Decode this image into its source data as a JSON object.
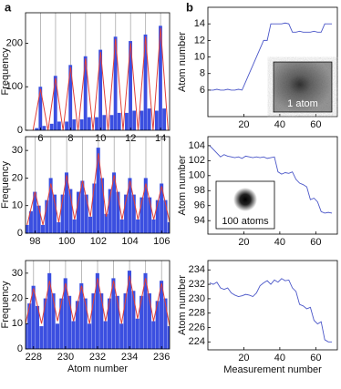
{
  "panel_labels": [
    "a",
    "b"
  ],
  "chart_data": [
    {
      "type": "histogram",
      "ylabel": "Frequency",
      "color": "#3b4fe0",
      "fit_color": "#e0403a",
      "grid_color": "#aaaaaa",
      "xlim": [
        5,
        14.6
      ],
      "ylim": [
        0,
        270
      ],
      "xticks": [
        6,
        8,
        10,
        12,
        14
      ],
      "yticks": [
        0,
        100,
        200
      ],
      "xgrid": [
        6,
        7,
        8,
        9,
        10,
        11,
        12,
        13,
        14
      ],
      "bins": [
        5.375,
        5.625,
        5.875,
        6.125,
        6.375,
        6.625,
        6.875,
        7.125,
        7.375,
        7.625,
        7.875,
        8.125,
        8.375,
        8.625,
        8.875,
        9.125,
        9.375,
        9.625,
        9.875,
        10.125,
        10.375,
        10.625,
        10.875,
        11.125,
        11.375,
        11.625,
        11.875,
        12.125,
        12.375,
        12.625,
        12.875,
        13.125,
        13.375,
        13.625,
        13.875,
        14.125,
        14.375,
        14.625
      ],
      "values": [
        0,
        5,
        100,
        10,
        0,
        15,
        125,
        20,
        0,
        20,
        150,
        25,
        0,
        25,
        170,
        30,
        0,
        30,
        185,
        35,
        0,
        35,
        215,
        40,
        0,
        40,
        205,
        45,
        0,
        45,
        220,
        50,
        0,
        45,
        240,
        50,
        0
      ],
      "fit_x": [
        5.5,
        6,
        6.5,
        7,
        7.5,
        8,
        8.5,
        9,
        9.5,
        10,
        10.5,
        11,
        11.5,
        12,
        12.5,
        13,
        13.5,
        14,
        14.5
      ],
      "fit_values": [
        0,
        95,
        0,
        120,
        0,
        145,
        0,
        165,
        0,
        180,
        0,
        210,
        0,
        200,
        0,
        215,
        0,
        235,
        0
      ]
    },
    {
      "type": "histogram",
      "ylabel": "Frequency",
      "color": "#3b4fe0",
      "fit_color": "#e0403a",
      "grid_color": "#aaaaaa",
      "xlim": [
        97.4,
        106.5
      ],
      "ylim": [
        0,
        35
      ],
      "xticks": [
        98,
        100,
        102,
        104,
        106
      ],
      "yticks": [
        0,
        10,
        20,
        30
      ],
      "xgrid": [
        98,
        99,
        100,
        101,
        102,
        103,
        104,
        105,
        106
      ],
      "bins": [
        97.375,
        97.625,
        97.875,
        98.125,
        98.375,
        98.625,
        98.875,
        99.125,
        99.375,
        99.625,
        99.875,
        100.125,
        100.375,
        100.625,
        100.875,
        101.125,
        101.375,
        101.625,
        101.875,
        102.125,
        102.375,
        102.625,
        102.875,
        103.125,
        103.375,
        103.625,
        103.875,
        104.125,
        104.375,
        104.625,
        104.875,
        105.125,
        105.375,
        105.625,
        105.875,
        106.125,
        106.375,
        106.625
      ],
      "values": [
        3,
        8,
        15,
        10,
        3,
        12,
        20,
        14,
        4,
        14,
        22,
        16,
        5,
        15,
        19,
        14,
        6,
        18,
        31,
        20,
        7,
        16,
        22,
        15,
        5,
        14,
        20,
        14,
        5,
        13,
        20,
        13,
        5,
        12,
        18,
        12,
        4
      ],
      "fit_x": [
        97.5,
        98,
        98.5,
        99,
        99.5,
        100,
        100.5,
        101,
        101.5,
        102,
        102.5,
        103,
        103.5,
        104,
        104.5,
        105,
        105.5,
        106,
        106.5
      ],
      "fit_values": [
        3,
        15,
        3,
        18,
        4,
        21,
        5,
        19,
        6,
        29,
        6,
        21,
        5,
        19,
        5,
        18,
        5,
        17,
        4
      ]
    },
    {
      "type": "histogram",
      "ylabel": "Frequency",
      "xlabel": "Atom number",
      "color": "#3b4fe0",
      "fit_color": "#e0403a",
      "grid_color": "#aaaaaa",
      "xlim": [
        227.5,
        236.5
      ],
      "ylim": [
        0,
        35
      ],
      "xticks": [
        228,
        230,
        232,
        234,
        236
      ],
      "yticks": [
        0,
        10,
        20,
        30
      ],
      "xgrid": [
        228,
        229,
        230,
        231,
        232,
        233,
        234,
        235,
        236
      ],
      "bins": [
        227.375,
        227.625,
        227.875,
        228.125,
        228.375,
        228.625,
        228.875,
        229.125,
        229.375,
        229.625,
        229.875,
        230.125,
        230.375,
        230.625,
        230.875,
        231.125,
        231.375,
        231.625,
        231.875,
        232.125,
        232.375,
        232.625,
        232.875,
        233.125,
        233.375,
        233.625,
        233.875,
        234.125,
        234.375,
        234.625,
        234.875,
        235.125,
        235.375,
        235.625,
        235.875,
        236.125,
        236.375,
        236.625
      ],
      "values": [
        10,
        18,
        25,
        17,
        9,
        20,
        30,
        22,
        10,
        20,
        28,
        21,
        11,
        19,
        26,
        20,
        10,
        22,
        30,
        22,
        11,
        20,
        28,
        21,
        10,
        22,
        31,
        23,
        12,
        21,
        30,
        22,
        11,
        19,
        27,
        20,
        9
      ],
      "fit_x": [
        227.5,
        228,
        228.5,
        229,
        229.5,
        230,
        230.5,
        231,
        231.5,
        232,
        232.5,
        233,
        233.5,
        234,
        234.5,
        235,
        235.5,
        236,
        236.5
      ],
      "fit_values": [
        10,
        24,
        10,
        27,
        11,
        26,
        11,
        25,
        10,
        28,
        11,
        27,
        10,
        29,
        12,
        28,
        11,
        26,
        9
      ]
    },
    {
      "type": "line",
      "ylabel": "Atom number",
      "color": "#4a56c8",
      "inset_label": "1 atom",
      "xlim": [
        0,
        72
      ],
      "ylim": [
        2.8,
        16
      ],
      "xticks": [
        20,
        40,
        60
      ],
      "yticks": [
        6,
        8,
        10,
        12,
        14
      ],
      "x": [
        1,
        3,
        5,
        7,
        9,
        11,
        13,
        15,
        17,
        19,
        21,
        23,
        25,
        27,
        29,
        31,
        33,
        35,
        37,
        39,
        41,
        43,
        45,
        47,
        49,
        51,
        53,
        55,
        57,
        59,
        61,
        63,
        65,
        67,
        69
      ],
      "values": [
        6,
        6,
        6.1,
        6,
        6,
        6.1,
        6,
        6,
        6.1,
        6,
        7,
        8,
        9,
        10,
        11,
        12,
        12,
        14,
        14,
        14,
        14,
        14.1,
        14,
        13,
        13,
        13.1,
        13,
        13,
        13,
        13.1,
        13,
        13,
        14,
        14,
        14
      ]
    },
    {
      "type": "line",
      "ylabel": "Atom number",
      "color": "#4a56c8",
      "inset_label": "100 atoms",
      "xlim": [
        0,
        72
      ],
      "ylim": [
        92.2,
        105.2
      ],
      "xticks": [
        20,
        40,
        60
      ],
      "yticks": [
        94,
        96,
        98,
        100,
        102,
        104
      ],
      "x": [
        1,
        3,
        5,
        7,
        9,
        11,
        13,
        15,
        17,
        19,
        21,
        23,
        25,
        27,
        29,
        31,
        33,
        35,
        37,
        39,
        41,
        43,
        45,
        47,
        49,
        51,
        53,
        55,
        57,
        59,
        61,
        63,
        65,
        67,
        69
      ],
      "values": [
        104,
        103.5,
        103,
        102.5,
        102.8,
        102.6,
        102.5,
        102.4,
        102.5,
        102.3,
        102.6,
        102.5,
        102.4,
        102.5,
        102.4,
        102.5,
        102.3,
        102.4,
        102.5,
        100.5,
        100.2,
        100.4,
        100.3,
        100.5,
        99.5,
        99,
        98.8,
        98.5,
        96.8,
        97,
        96.5,
        95.2,
        95,
        95.1,
        95
      ]
    },
    {
      "type": "line",
      "ylabel": "Atom number",
      "xlabel": "Measurement number",
      "color": "#4a56c8",
      "xlim": [
        0,
        72
      ],
      "ylim": [
        222.9,
        235.3
      ],
      "xticks": [
        20,
        40,
        60
      ],
      "yticks": [
        224,
        226,
        228,
        230,
        232,
        234
      ],
      "x": [
        1,
        3,
        5,
        7,
        9,
        11,
        13,
        15,
        17,
        19,
        21,
        23,
        25,
        27,
        29,
        31,
        33,
        35,
        37,
        39,
        41,
        43,
        45,
        47,
        49,
        51,
        53,
        55,
        57,
        59,
        61,
        63,
        65,
        67,
        69
      ],
      "values": [
        232.2,
        232,
        232.3,
        231.5,
        231.3,
        231.5,
        230.8,
        230.5,
        230.3,
        230.4,
        230.6,
        230.5,
        230.3,
        230.8,
        231.8,
        232.2,
        232.5,
        232,
        232.6,
        232.3,
        232.8,
        232.5,
        232.6,
        231.5,
        231,
        229.2,
        229,
        228.6,
        228.8,
        227,
        226.5,
        226.8,
        224.3,
        224,
        224
      ]
    }
  ]
}
